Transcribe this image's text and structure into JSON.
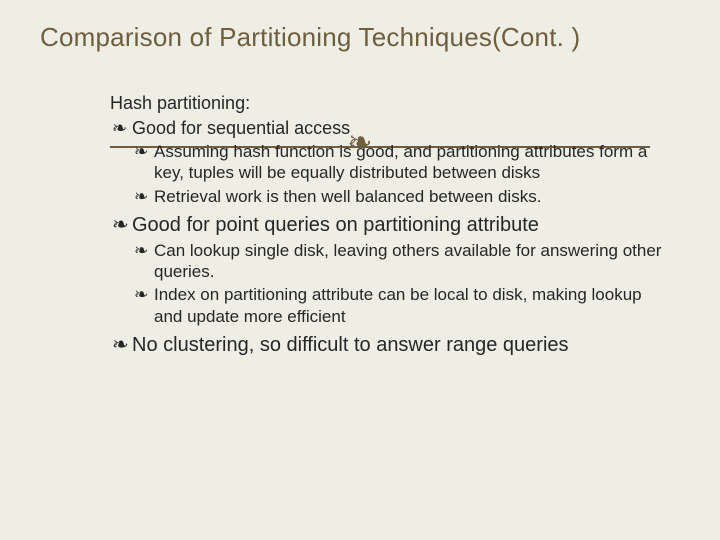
{
  "colors": {
    "background": "#efeee4",
    "title": "#6e5d3e",
    "text": "#262626",
    "rule": "#6e5d3e",
    "flourish": "#6e5d3e"
  },
  "title": "Comparison of Partitioning Techniques(Cont. )",
  "flourish_glyph": "❧",
  "bullet_glyph": "❧",
  "lines": {
    "l0": "Hash partitioning:",
    "l1": " Good for sequential access",
    "l2": "Assuming hash function is good, and partitioning attributes form a key, tuples will be equally distributed between disks",
    "l3": "Retrieval work is then well balanced between disks.",
    "l4": "Good for point queries on partitioning attribute",
    "l5": "Can lookup single disk, leaving others available for answering other queries.",
    "l6": "Index on partitioning attribute can be local to disk, making lookup and update more efficient",
    "l7": "No clustering, so difficult to answer range queries"
  }
}
